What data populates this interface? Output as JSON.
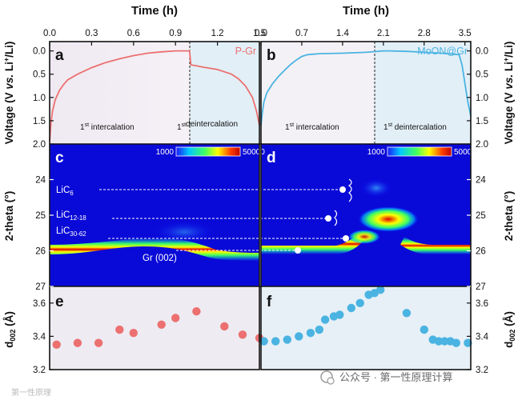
{
  "chart_data": [
    {
      "panel": "a",
      "type": "line",
      "title": "P-Gr",
      "xlabel": "Time (h)",
      "ylabel": "Voltage (V vs. Li+/Li)",
      "xlim": [
        0,
        1.5
      ],
      "ylim": [
        2.0,
        -0.2
      ],
      "xticks": [
        "0.0",
        "0.3",
        "0.6",
        "0.9",
        "1.2",
        "1.5"
      ],
      "yticks": [
        "0.0",
        "0.5",
        "1.0",
        "1.5",
        "2.0"
      ],
      "x": [
        0.0,
        0.01,
        0.02,
        0.04,
        0.07,
        0.1,
        0.13,
        0.2,
        0.3,
        0.4,
        0.5,
        0.6,
        0.7,
        0.8,
        0.9,
        0.96,
        1.0,
        1.01,
        1.05,
        1.1,
        1.2,
        1.3,
        1.35,
        1.4,
        1.45,
        1.48,
        1.5
      ],
      "y": [
        1.95,
        1.55,
        1.3,
        1.05,
        0.85,
        0.72,
        0.62,
        0.5,
        0.36,
        0.25,
        0.17,
        0.1,
        0.05,
        0.02,
        0.0,
        0.0,
        0.0,
        0.3,
        0.32,
        0.35,
        0.4,
        0.5,
        0.6,
        0.75,
        1.0,
        1.3,
        1.6
      ],
      "divider_x": 1.0,
      "annotations": [
        {
          "sup": "st",
          "pre": "1",
          "text": "intercalation"
        },
        {
          "sup": "st",
          "pre": "1",
          "text": "deintercalation"
        }
      ]
    },
    {
      "panel": "b",
      "type": "line",
      "title": "MoON@Gr",
      "xlabel": "Time (h)",
      "ylabel": "Voltage (V vs. Li+/Li)",
      "xlim": [
        0,
        3.6
      ],
      "ylim": [
        2.0,
        -0.2
      ],
      "xticks": [
        "0.0",
        "0.7",
        "1.4",
        "2.1",
        "2.8",
        "3.5"
      ],
      "yticks": [
        "0.0",
        "0.5",
        "1.0",
        "1.5",
        "2.0"
      ],
      "x": [
        0.0,
        0.02,
        0.05,
        0.1,
        0.2,
        0.3,
        0.4,
        0.5,
        0.6,
        0.7,
        0.8,
        1.0,
        1.4,
        1.8,
        2.1,
        2.2,
        2.5,
        2.8,
        3.1,
        3.3,
        3.4,
        3.45,
        3.5,
        3.55,
        3.6
      ],
      "y": [
        1.6,
        1.35,
        1.1,
        0.9,
        0.7,
        0.55,
        0.42,
        0.3,
        0.2,
        0.12,
        0.08,
        0.06,
        0.05,
        0.03,
        0.0,
        0.0,
        0.01,
        0.03,
        0.05,
        0.07,
        0.08,
        0.3,
        0.7,
        1.1,
        1.4
      ],
      "divider_x": 2.1,
      "annotations": [
        {
          "sup": "st",
          "pre": "1",
          "text": "intercalation"
        },
        {
          "sup": "st",
          "pre": "1",
          "text": "deintercalation"
        }
      ]
    },
    {
      "panel": "c",
      "type": "heatmap",
      "ylabel": "2-theta (°)",
      "ylim": [
        23,
        27
      ],
      "yticks": [
        "24",
        "25",
        "26",
        "27"
      ],
      "colorbar": {
        "min": "1000",
        "max": "50000"
      },
      "peak_track": {
        "x": [
          0.0,
          0.2,
          0.4,
          0.6,
          0.8,
          1.0,
          1.1,
          1.3,
          1.5
        ],
        "two_theta": [
          26.05,
          26.0,
          25.9,
          25.82,
          25.8,
          25.85,
          26.0,
          26.08,
          26.1
        ]
      },
      "labels": [
        {
          "name": "LiC",
          "sub": "6",
          "two_theta": 24.3
        },
        {
          "name": "LiC",
          "sub": "12-18",
          "two_theta": 25.1
        },
        {
          "name": "LiC",
          "sub": "30-62",
          "two_theta": 25.6
        },
        {
          "name": "Gr (002)",
          "sub": "",
          "two_theta": 26.1
        }
      ]
    },
    {
      "panel": "d",
      "type": "heatmap",
      "ylabel": "2-theta (°)",
      "ylim": [
        23,
        27
      ],
      "yticks": [
        "24",
        "25",
        "26",
        "27"
      ],
      "colorbar": {
        "min": "1000",
        "max": "50000"
      }
    },
    {
      "panel": "e",
      "type": "scatter",
      "ylabel": "d002 (Å)",
      "ylim": [
        3.2,
        3.7
      ],
      "yticks": [
        "3.2",
        "3.4",
        "3.6"
      ],
      "x": [
        0.05,
        0.2,
        0.35,
        0.5,
        0.6,
        0.8,
        0.9,
        1.05,
        1.25,
        1.38,
        1.5
      ],
      "y": [
        3.35,
        3.36,
        3.36,
        3.44,
        3.42,
        3.47,
        3.51,
        3.55,
        3.46,
        3.41,
        3.39
      ]
    },
    {
      "panel": "f",
      "type": "scatter",
      "ylabel": "d002 (Å)",
      "ylim": [
        3.2,
        3.7
      ],
      "yticks": [
        "3.2",
        "3.4",
        "3.6"
      ],
      "x": [
        0.05,
        0.25,
        0.45,
        0.65,
        0.85,
        1.0,
        1.1,
        1.25,
        1.35,
        1.55,
        1.7,
        1.85,
        1.95,
        2.05,
        2.5,
        2.8,
        2.95,
        3.05,
        3.15,
        3.25,
        3.35,
        3.55
      ],
      "y": [
        3.37,
        3.37,
        3.38,
        3.4,
        3.42,
        3.44,
        3.5,
        3.52,
        3.53,
        3.57,
        3.6,
        3.65,
        3.66,
        3.68,
        3.54,
        3.44,
        3.38,
        3.37,
        3.37,
        3.37,
        3.36,
        3.36
      ]
    }
  ],
  "watermark": {
    "left": "第一性原理",
    "right": "公众号 · 第一性原理计算"
  }
}
